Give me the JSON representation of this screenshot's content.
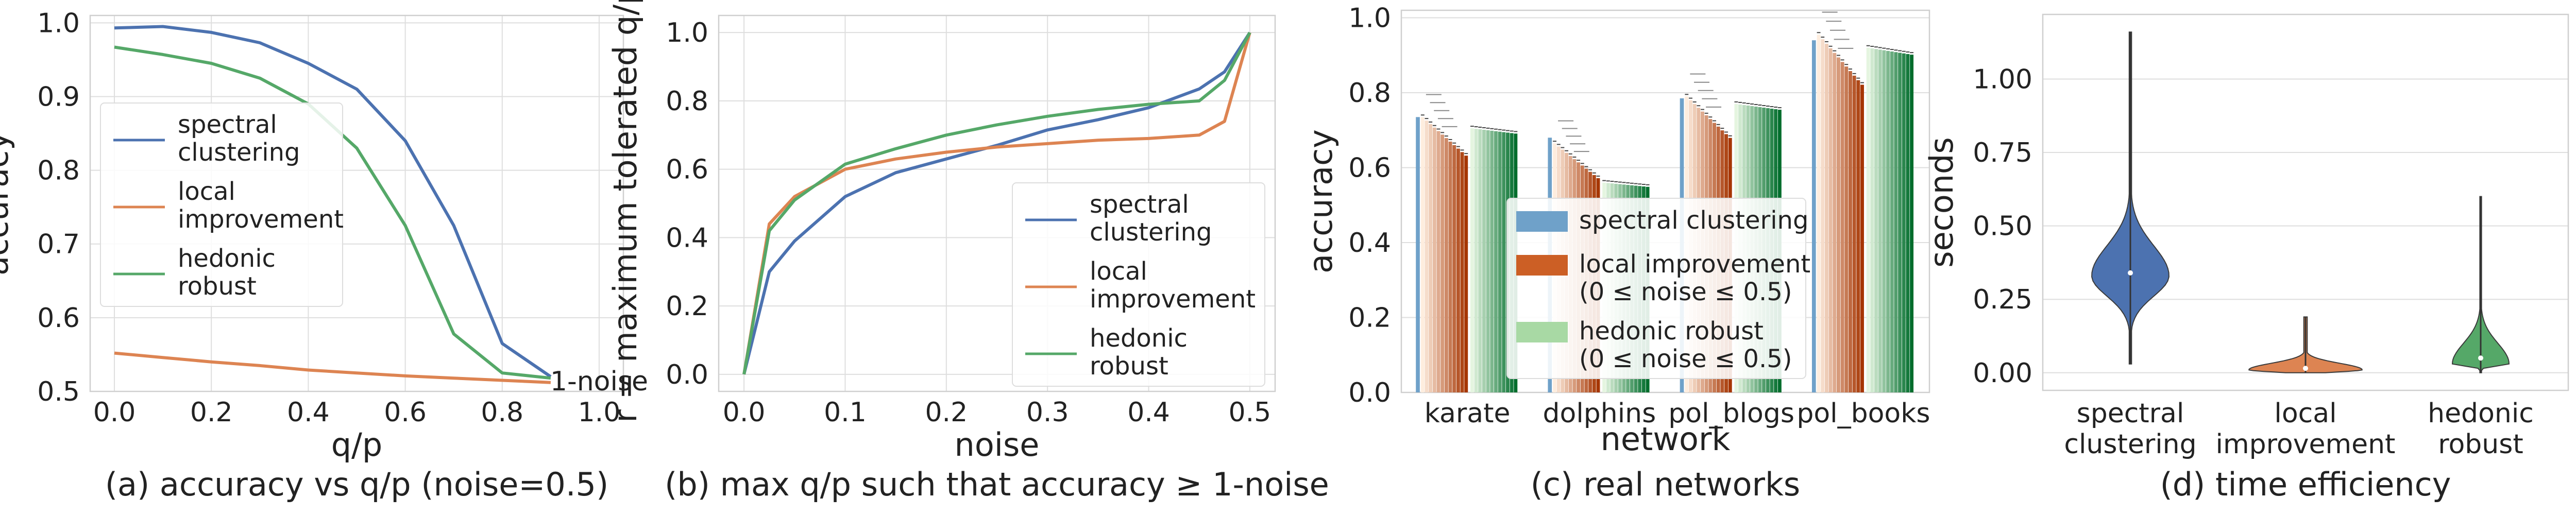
{
  "chart_data": [
    {
      "type": "line",
      "caption": "(a) accuracy vs q/p (noise=0.5)",
      "xlabel": "q/p",
      "ylabel": "accuracy",
      "xlim": [
        -0.05,
        1.05
      ],
      "ylim": [
        0.5,
        1.01
      ],
      "xticks": [
        "0.0",
        "0.2",
        "0.4",
        "0.6",
        "0.8",
        "1.0"
      ],
      "yticks": [
        "0.5",
        "0.6",
        "0.7",
        "0.8",
        "0.9",
        "1.0"
      ],
      "annotation": "1-noise",
      "grid": true,
      "legend": "center-left",
      "series": [
        {
          "name": "spectral clustering",
          "color": "#4c72b0",
          "x": [
            0.0,
            0.1,
            0.2,
            0.3,
            0.4,
            0.5,
            0.6,
            0.7,
            0.8,
            0.9
          ],
          "y": [
            0.993,
            0.995,
            0.987,
            0.973,
            0.945,
            0.91,
            0.84,
            0.725,
            0.565,
            0.52
          ]
        },
        {
          "name": "local improvement",
          "color": "#dd8452",
          "x": [
            0.0,
            0.1,
            0.2,
            0.3,
            0.4,
            0.5,
            0.6,
            0.7,
            0.8,
            0.9
          ],
          "y": [
            0.552,
            0.546,
            0.54,
            0.535,
            0.529,
            0.525,
            0.521,
            0.518,
            0.515,
            0.512
          ]
        },
        {
          "name": "hedonic robust",
          "color": "#55a868",
          "x": [
            0.0,
            0.1,
            0.2,
            0.3,
            0.4,
            0.5,
            0.6,
            0.7,
            0.8,
            0.9
          ],
          "y": [
            0.967,
            0.957,
            0.945,
            0.925,
            0.89,
            0.83,
            0.725,
            0.578,
            0.525,
            0.518
          ]
        }
      ]
    },
    {
      "type": "line",
      "caption": "(b) max q/p such that accuracy ≥ 1-noise",
      "xlabel": "noise",
      "ylabel": "r = maximum tolerated q/p",
      "xlim": [
        -0.025,
        0.525
      ],
      "ylim": [
        -0.05,
        1.05
      ],
      "xticks": [
        "0.0",
        "0.1",
        "0.2",
        "0.3",
        "0.4",
        "0.5"
      ],
      "yticks": [
        "0.0",
        "0.2",
        "0.4",
        "0.6",
        "0.8",
        "1.0"
      ],
      "grid": true,
      "legend": "lower-right",
      "series": [
        {
          "name": "spectral clustering",
          "color": "#4c72b0",
          "x": [
            0,
            0.025,
            0.05,
            0.1,
            0.15,
            0.2,
            0.25,
            0.3,
            0.35,
            0.4,
            0.45,
            0.475,
            0.5
          ],
          "y": [
            0,
            0.3,
            0.39,
            0.52,
            0.59,
            0.63,
            0.67,
            0.715,
            0.745,
            0.78,
            0.835,
            0.885,
            1.0
          ]
        },
        {
          "name": "local improvement",
          "color": "#dd8452",
          "x": [
            0,
            0.025,
            0.05,
            0.1,
            0.15,
            0.2,
            0.25,
            0.3,
            0.35,
            0.4,
            0.45,
            0.475,
            0.5
          ],
          "y": [
            0,
            0.44,
            0.52,
            0.6,
            0.63,
            0.65,
            0.665,
            0.675,
            0.685,
            0.69,
            0.7,
            0.74,
            1.0
          ]
        },
        {
          "name": "hedonic robust",
          "color": "#55a868",
          "x": [
            0,
            0.025,
            0.05,
            0.1,
            0.15,
            0.2,
            0.25,
            0.3,
            0.35,
            0.4,
            0.45,
            0.475,
            0.5
          ],
          "y": [
            0,
            0.42,
            0.51,
            0.615,
            0.66,
            0.7,
            0.73,
            0.755,
            0.775,
            0.79,
            0.8,
            0.86,
            1.0
          ]
        }
      ]
    },
    {
      "type": "bar",
      "caption": "(c) real networks",
      "xlabel": "network",
      "ylabel": "accuracy",
      "ylim": [
        0,
        1.02
      ],
      "yticks": [
        "0.0",
        "0.2",
        "0.4",
        "0.6",
        "0.8",
        "1.0"
      ],
      "categories": [
        "karate",
        "dolphins",
        "pol_blogs",
        "pol_books"
      ],
      "grid": true,
      "legend": "center-right",
      "legend_entries": [
        {
          "label": "spectral clustering",
          "color": "#6fa1c9"
        },
        {
          "label": "local improvement\n(0 ≤ noise ≤ 0.5)",
          "color": "#cc5f25"
        },
        {
          "label": "hedonic robust\n(0 ≤ noise ≤ 0.5)",
          "color": "#a8d9a4"
        }
      ],
      "series": [
        {
          "name": "spectral clustering",
          "values": [
            0.735,
            0.68,
            0.785,
            0.94
          ]
        },
        {
          "name": "local improvement",
          "values": [
            0.735,
            0.665,
            0.79,
            0.955
          ]
        },
        {
          "name": "hedonic robust",
          "values": [
            0.705,
            0.56,
            0.77,
            0.92
          ]
        }
      ]
    },
    {
      "type": "violin",
      "caption": "(d) time efficiency",
      "ylabel": "seconds",
      "ylim": [
        -0.06,
        1.22
      ],
      "yticks": [
        "0.00",
        "0.25",
        "0.50",
        "0.75",
        "1.00"
      ],
      "categories": [
        "spectral\nclustering",
        "local\nimprovement",
        "hedonic\nrobust"
      ],
      "colors": [
        "#4c72b0",
        "#dd8452",
        "#55a868"
      ],
      "grid": true,
      "distributions": [
        {
          "min": 0.03,
          "max": 1.16,
          "median": 0.34,
          "mode": 0.33
        },
        {
          "min": 0.0,
          "max": 0.19,
          "median": 0.015,
          "mode": 0.01
        },
        {
          "min": 0.0,
          "max": 0.6,
          "median": 0.05,
          "mode": 0.03
        }
      ]
    }
  ]
}
